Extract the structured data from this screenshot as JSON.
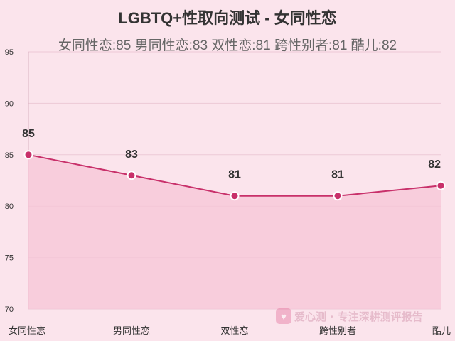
{
  "chart_data": {
    "type": "line",
    "title": "LGBTQ+性取向测试 - 女同性恋",
    "subtitle": "女同性恋:85 男同性恋:83 双性恋:81 跨性别者:81 酷儿:82",
    "categories": [
      "女同性恋",
      "男同性恋",
      "双性恋",
      "跨性别者",
      "酷儿"
    ],
    "values": [
      85,
      83,
      81,
      81,
      82
    ],
    "data_labels": [
      "85",
      "83",
      "81",
      "81",
      "82"
    ],
    "ylim": [
      70,
      95
    ],
    "yticks": [
      "70",
      "75",
      "80",
      "85",
      "90",
      "95"
    ],
    "xlabel": "",
    "ylabel": "",
    "grid": true,
    "area_fill": true,
    "colors": {
      "line": "#c8306a",
      "point": "#c8306a",
      "area": "#f7c6d7",
      "grid": "#ecc9d6",
      "background": "#fbe4ec"
    }
  },
  "watermark": {
    "icon": "heart-icon",
    "text": "爱心测 · 专注深耕测评报告"
  }
}
